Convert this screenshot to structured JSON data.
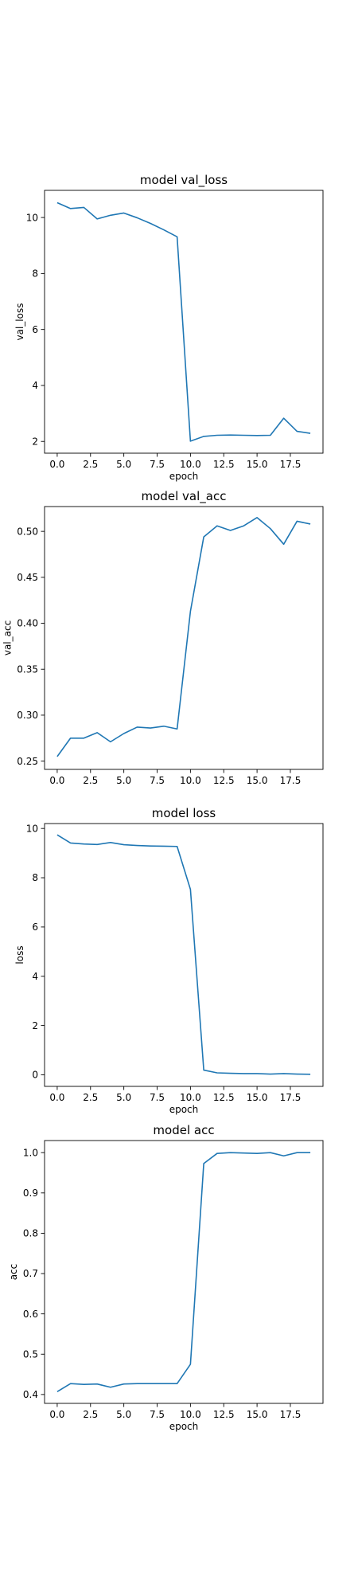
{
  "colors": {
    "series": "#1f77b4"
  },
  "chart_data": [
    {
      "type": "line",
      "title": "model val_loss",
      "xlabel": "epoch",
      "ylabel": "val_loss",
      "xlim": [
        -0.95,
        19.95
      ],
      "ylim": [
        1.58,
        10.97
      ],
      "xticks": [
        0.0,
        2.5,
        5.0,
        7.5,
        10.0,
        12.5,
        15.0,
        17.5
      ],
      "xtick_labels": [
        "0.0",
        "2.5",
        "5.0",
        "7.5",
        "10.0",
        "12.5",
        "15.0",
        "17.5"
      ],
      "yticks": [
        2,
        4,
        6,
        8,
        10
      ],
      "ytick_labels": [
        "2",
        "4",
        "6",
        "8",
        "10"
      ],
      "grid": false,
      "series": [
        {
          "x": [
            0,
            1,
            2,
            3,
            4,
            5,
            6,
            7,
            8,
            9,
            10,
            11,
            12,
            13,
            14,
            15,
            16,
            17,
            18,
            19
          ],
          "y": [
            10.53,
            10.32,
            10.36,
            9.95,
            10.08,
            10.16,
            9.99,
            9.79,
            9.56,
            9.31,
            2.01,
            2.18,
            2.22,
            2.23,
            2.22,
            2.21,
            2.22,
            2.83,
            2.36,
            2.29
          ]
        }
      ]
    },
    {
      "type": "line",
      "title": "model val_acc",
      "xlabel": "",
      "ylabel": "val_acc",
      "xlim": [
        -0.95,
        19.95
      ],
      "ylim": [
        0.241,
        0.527
      ],
      "xticks": [
        0.0,
        2.5,
        5.0,
        7.5,
        10.0,
        12.5,
        15.0,
        17.5
      ],
      "xtick_labels": [
        "0.0",
        "2.5",
        "5.0",
        "7.5",
        "10.0",
        "12.5",
        "15.0",
        "17.5"
      ],
      "yticks": [
        0.25,
        0.3,
        0.35,
        0.4,
        0.45,
        0.5
      ],
      "ytick_labels": [
        "0.25",
        "0.30",
        "0.35",
        "0.40",
        "0.45",
        "0.50"
      ],
      "grid": false,
      "series": [
        {
          "x": [
            0,
            1,
            2,
            3,
            4,
            5,
            6,
            7,
            8,
            9,
            10,
            11,
            12,
            13,
            14,
            15,
            16,
            17,
            18,
            19
          ],
          "y": [
            0.255,
            0.275,
            0.275,
            0.281,
            0.271,
            0.28,
            0.287,
            0.286,
            0.288,
            0.285,
            0.413,
            0.494,
            0.506,
            0.501,
            0.506,
            0.515,
            0.503,
            0.486,
            0.511,
            0.508
          ]
        }
      ]
    },
    {
      "type": "line",
      "title": "model loss",
      "xlabel": "epoch",
      "ylabel": "loss",
      "xlim": [
        -0.95,
        19.95
      ],
      "ylim": [
        -0.47,
        10.2
      ],
      "xticks": [
        0.0,
        2.5,
        5.0,
        7.5,
        10.0,
        12.5,
        15.0,
        17.5
      ],
      "xtick_labels": [
        "0.0",
        "2.5",
        "5.0",
        "7.5",
        "10.0",
        "12.5",
        "15.0",
        "17.5"
      ],
      "yticks": [
        0,
        2,
        4,
        6,
        8,
        10
      ],
      "ytick_labels": [
        "0",
        "2",
        "4",
        "6",
        "8",
        "10"
      ],
      "grid": false,
      "series": [
        {
          "x": [
            0,
            1,
            2,
            3,
            4,
            5,
            6,
            7,
            8,
            9,
            10,
            11,
            12,
            13,
            14,
            15,
            16,
            17,
            18,
            19
          ],
          "y": [
            9.74,
            9.41,
            9.37,
            9.35,
            9.43,
            9.34,
            9.31,
            9.29,
            9.28,
            9.27,
            7.53,
            0.19,
            0.08,
            0.06,
            0.05,
            0.05,
            0.03,
            0.05,
            0.03,
            0.02
          ]
        }
      ]
    },
    {
      "type": "line",
      "title": "model acc",
      "xlabel": "epoch",
      "ylabel": "acc",
      "xlim": [
        -0.95,
        19.95
      ],
      "ylim": [
        0.378,
        1.03
      ],
      "xticks": [
        0.0,
        2.5,
        5.0,
        7.5,
        10.0,
        12.5,
        15.0,
        17.5
      ],
      "xtick_labels": [
        "0.0",
        "2.5",
        "5.0",
        "7.5",
        "10.0",
        "12.5",
        "15.0",
        "17.5"
      ],
      "yticks": [
        0.4,
        0.5,
        0.6,
        0.7,
        0.8,
        0.9,
        1.0
      ],
      "ytick_labels": [
        "0.4",
        "0.5",
        "0.6",
        "0.7",
        "0.8",
        "0.9",
        "1.0"
      ],
      "grid": false,
      "series": [
        {
          "x": [
            0,
            1,
            2,
            3,
            4,
            5,
            6,
            7,
            8,
            9,
            10,
            11,
            12,
            13,
            14,
            15,
            16,
            17,
            18,
            19
          ],
          "y": [
            0.407,
            0.427,
            0.425,
            0.426,
            0.418,
            0.426,
            0.427,
            0.427,
            0.427,
            0.427,
            0.475,
            0.973,
            0.998,
            1.0,
            0.999,
            0.998,
            1.0,
            0.992,
            1.0,
            1.0
          ]
        }
      ]
    }
  ]
}
